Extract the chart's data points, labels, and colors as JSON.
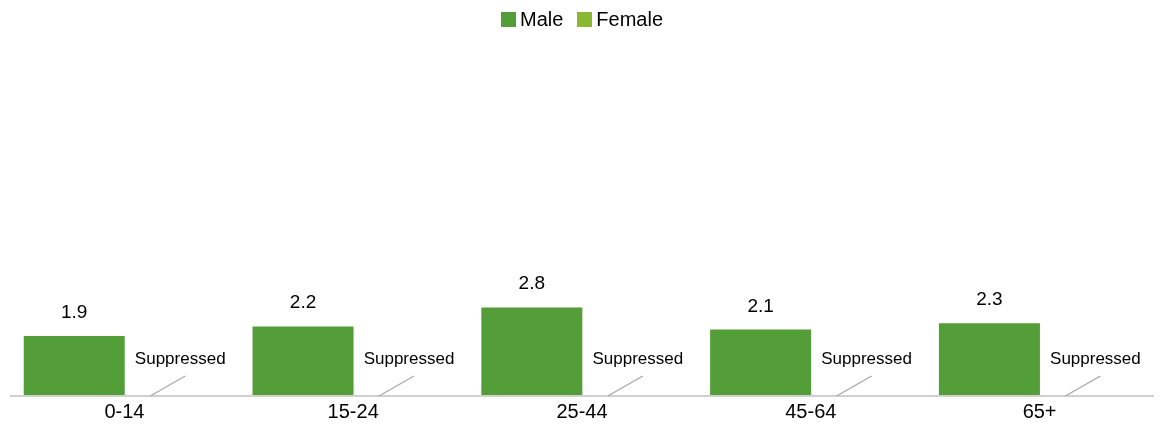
{
  "chart_data": {
    "type": "bar",
    "categories": [
      "0-14",
      "15-24",
      "25-44",
      "45-64",
      "65+"
    ],
    "series": [
      {
        "name": "Male",
        "color": "#549e39",
        "values": [
          1.9,
          2.2,
          2.8,
          2.1,
          2.3
        ],
        "value_labels": [
          "1.9",
          "2.2",
          "2.8",
          "2.1",
          "2.3"
        ]
      },
      {
        "name": "Female",
        "color": "#8ab833",
        "values": [
          null,
          null,
          null,
          null,
          null
        ],
        "value_labels": [
          "Suppressed",
          "Suppressed",
          "Suppressed",
          "Suppressed",
          "Suppressed"
        ]
      }
    ],
    "tick_labels": "x",
    "legend": "top"
  }
}
